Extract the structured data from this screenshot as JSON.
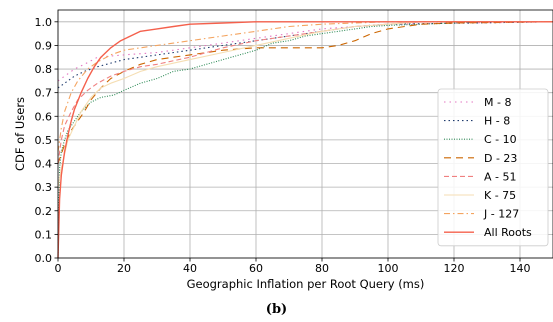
{
  "caption": "(b)",
  "chart_data": {
    "type": "line",
    "title": "",
    "xlabel": "Geographic Inflation per Root Query (ms)",
    "ylabel": "CDF of Users",
    "xlim": [
      0,
      150
    ],
    "ylim": [
      0,
      1.05
    ],
    "xticks": [
      "0",
      "20",
      "40",
      "60",
      "80",
      "100",
      "120",
      "140"
    ],
    "yticks": [
      "0.0",
      "0.1",
      "0.2",
      "0.3",
      "0.4",
      "0.5",
      "0.6",
      "0.7",
      "0.8",
      "0.9",
      "1.0"
    ],
    "grid": true,
    "legend_position": "lower-right",
    "series": [
      {
        "name": "M - 8",
        "color": "#e377c2",
        "dash": "1.5,4",
        "x": [
          0,
          1,
          3,
          5,
          8,
          12,
          20,
          30,
          40,
          50,
          60,
          70,
          80,
          90,
          100,
          150
        ],
        "y": [
          0.75,
          0.76,
          0.78,
          0.8,
          0.82,
          0.85,
          0.86,
          0.87,
          0.89,
          0.91,
          0.93,
          0.95,
          0.97,
          0.98,
          0.99,
          1.0
        ]
      },
      {
        "name": "H - 8",
        "color": "#1f3b6e",
        "dash": "1.5,3",
        "x": [
          0,
          1,
          3,
          5,
          8,
          12,
          20,
          30,
          40,
          50,
          60,
          70,
          80,
          90,
          100,
          150
        ],
        "y": [
          0.72,
          0.73,
          0.75,
          0.77,
          0.79,
          0.81,
          0.84,
          0.86,
          0.88,
          0.9,
          0.92,
          0.94,
          0.96,
          0.98,
          0.99,
          1.0
        ]
      },
      {
        "name": "C - 10",
        "color": "#2e8b57",
        "dash": "1,1.5",
        "x": [
          0,
          0.5,
          1,
          2,
          3,
          5,
          7,
          10,
          13,
          17,
          20,
          25,
          30,
          35,
          40,
          45,
          50,
          55,
          60,
          65,
          70,
          75,
          80,
          85,
          90,
          95,
          100,
          110,
          120,
          130,
          150
        ],
        "y": [
          0.0,
          0.38,
          0.45,
          0.5,
          0.54,
          0.58,
          0.62,
          0.66,
          0.68,
          0.69,
          0.71,
          0.74,
          0.76,
          0.79,
          0.8,
          0.82,
          0.84,
          0.86,
          0.88,
          0.91,
          0.92,
          0.94,
          0.95,
          0.96,
          0.97,
          0.98,
          0.985,
          0.99,
          0.995,
          1.0,
          1.0
        ]
      },
      {
        "name": "D - 23",
        "color": "#cc6600",
        "dash": "7,5",
        "x": [
          0,
          1,
          2,
          4,
          6,
          8,
          10,
          13,
          16,
          20,
          25,
          30,
          35,
          40,
          50,
          60,
          70,
          80,
          85,
          90,
          95,
          100,
          110,
          120,
          150
        ],
        "y": [
          0.4,
          0.44,
          0.48,
          0.54,
          0.58,
          0.62,
          0.67,
          0.72,
          0.76,
          0.79,
          0.82,
          0.84,
          0.85,
          0.86,
          0.88,
          0.89,
          0.89,
          0.89,
          0.9,
          0.92,
          0.95,
          0.97,
          0.99,
          0.995,
          1.0
        ]
      },
      {
        "name": "A - 51",
        "color": "#f08080",
        "dash": "5,3",
        "x": [
          0,
          1,
          2,
          4,
          6,
          9,
          12,
          16,
          20,
          25,
          30,
          40,
          50,
          60,
          70,
          80,
          90,
          100,
          110,
          150
        ],
        "y": [
          0.4,
          0.5,
          0.56,
          0.62,
          0.67,
          0.71,
          0.74,
          0.77,
          0.79,
          0.81,
          0.82,
          0.85,
          0.89,
          0.92,
          0.94,
          0.96,
          0.98,
          0.99,
          1.0,
          1.0
        ]
      },
      {
        "name": "K - 75",
        "color": "#f5deb3",
        "dash": "",
        "x": [
          0,
          1,
          2,
          3,
          5,
          7,
          10,
          13,
          16,
          20,
          25,
          30,
          40,
          50,
          60,
          70,
          80,
          90,
          100,
          110,
          150
        ],
        "y": [
          0.3,
          0.38,
          0.44,
          0.5,
          0.56,
          0.62,
          0.68,
          0.72,
          0.74,
          0.76,
          0.79,
          0.81,
          0.84,
          0.87,
          0.9,
          0.93,
          0.96,
          0.98,
          0.99,
          1.0,
          1.0
        ]
      },
      {
        "name": "J - 127",
        "color": "#f4a460",
        "dash": "6,3,1.5,3",
        "x": [
          0,
          1,
          2,
          4,
          6,
          9,
          12,
          16,
          20,
          25,
          30,
          35,
          40,
          50,
          60,
          70,
          80,
          90,
          100,
          150
        ],
        "y": [
          0.45,
          0.55,
          0.62,
          0.7,
          0.75,
          0.8,
          0.83,
          0.86,
          0.88,
          0.89,
          0.9,
          0.91,
          0.92,
          0.94,
          0.96,
          0.98,
          0.99,
          0.995,
          1.0,
          1.0
        ]
      },
      {
        "name": "All Roots",
        "color": "#f4604c",
        "dash": "",
        "width": 1.4,
        "x": [
          0,
          0.5,
          1,
          2,
          3,
          4,
          5,
          7,
          9,
          11,
          13,
          16,
          19,
          22,
          25,
          30,
          35,
          40,
          50,
          60,
          150
        ],
        "y": [
          0.0,
          0.25,
          0.35,
          0.45,
          0.52,
          0.58,
          0.63,
          0.7,
          0.76,
          0.81,
          0.85,
          0.89,
          0.92,
          0.94,
          0.96,
          0.97,
          0.98,
          0.99,
          0.995,
          1.0,
          1.0
        ]
      }
    ]
  }
}
